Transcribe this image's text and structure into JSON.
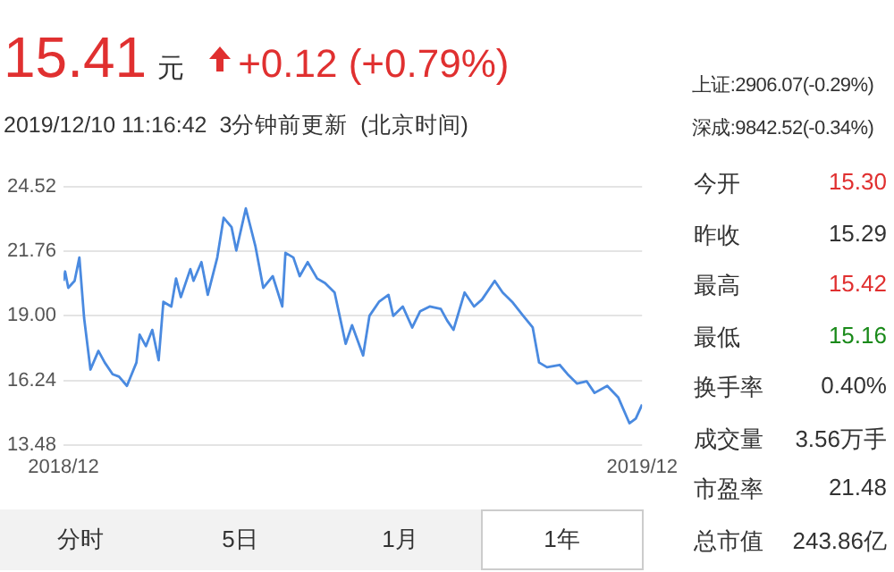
{
  "chart_data": {
    "type": "line",
    "x": [
      "2018-12-10",
      "2018-12-11",
      "2018-12-13",
      "2018-12-17",
      "2018-12-20",
      "2018-12-23",
      "2018-12-27",
      "2019-01-01",
      "2019-01-05",
      "2019-01-10",
      "2019-01-14",
      "2019-01-19",
      "2019-01-25",
      "2019-01-27",
      "2019-01-31",
      "2019-02-04",
      "2019-02-08",
      "2019-02-11",
      "2019-02-16",
      "2019-02-19",
      "2019-02-22",
      "2019-02-28",
      "2019-03-02",
      "2019-03-07",
      "2019-03-11",
      "2019-03-17",
      "2019-03-21",
      "2019-03-26",
      "2019-03-29",
      "2019-04-04",
      "2019-04-10",
      "2019-04-15",
      "2019-04-21",
      "2019-04-27",
      "2019-04-29",
      "2019-05-04",
      "2019-05-08",
      "2019-05-13",
      "2019-05-19",
      "2019-05-24",
      "2019-05-30",
      "2019-06-06",
      "2019-06-10",
      "2019-06-17",
      "2019-06-21",
      "2019-06-27",
      "2019-07-03",
      "2019-07-06",
      "2019-07-12",
      "2019-07-18",
      "2019-07-23",
      "2019-07-29",
      "2019-08-05",
      "2019-08-09",
      "2019-08-13",
      "2019-08-20",
      "2019-08-26",
      "2019-08-31",
      "2019-09-08",
      "2019-09-13",
      "2019-09-19",
      "2019-09-26",
      "2019-10-02",
      "2019-10-06",
      "2019-10-11",
      "2019-10-19",
      "2019-10-24",
      "2019-10-30",
      "2019-11-05",
      "2019-11-10",
      "2019-11-18",
      "2019-11-25",
      "2019-12-02",
      "2019-12-06",
      "2019-12-10"
    ],
    "series": [
      {
        "color": "#4a8ae0",
        "values": [
          20.5,
          20.9,
          20.2,
          20.5,
          21.5,
          18.9,
          16.7,
          17.5,
          17.0,
          16.5,
          16.4,
          16.0,
          17.0,
          18.2,
          17.7,
          18.4,
          17.1,
          19.6,
          19.4,
          20.6,
          19.8,
          21.0,
          20.5,
          21.3,
          19.9,
          21.5,
          23.2,
          22.8,
          21.8,
          23.6,
          22.0,
          20.2,
          20.7,
          19.4,
          21.7,
          21.5,
          20.7,
          21.3,
          20.6,
          20.4,
          20.0,
          17.8,
          18.6,
          17.3,
          19.0,
          19.6,
          19.9,
          19.0,
          19.4,
          18.5,
          19.2,
          19.4,
          19.3,
          18.8,
          18.4,
          20.0,
          19.4,
          19.7,
          20.5,
          20.0,
          19.6,
          19.0,
          18.5,
          17.0,
          16.8,
          16.9,
          16.5,
          16.1,
          16.2,
          15.7,
          16.0,
          15.5,
          14.4,
          14.6,
          15.2
        ]
      }
    ],
    "xlim": [
      "2018-12-10",
      "2019-12-10"
    ],
    "xticks": [
      {
        "value": "2018-12-10",
        "label": "2018/12"
      },
      {
        "value": "2019-12-10",
        "label": "2019/12"
      }
    ],
    "ylim": [
      13.48,
      24.52
    ],
    "yticks": [
      13.48,
      16.24,
      {
        "value": 19,
        "label": "19.00"
      },
      21.76,
      24.52
    ],
    "grid": "y",
    "legend": false,
    "marker": "none",
    "line_style": "solid",
    "annotations": [
      "15.41",
      "元",
      "+0.12 (+0.79%)",
      "2019/12/10 11:16:42  3分钟前更新  (北京时间)",
      "上证:2906.07(-0.29%)",
      "深成:9842.52(-0.34%)",
      "今开",
      "15.30",
      "昨收",
      "15.29",
      "最高",
      "15.42",
      "最低",
      "15.16",
      "换手率",
      "0.40%",
      "成交量",
      "3.56万手",
      "市盈率",
      "21.48",
      "总市值",
      "243.86亿",
      "分时",
      "5日",
      "1月",
      "1年"
    ]
  }
}
